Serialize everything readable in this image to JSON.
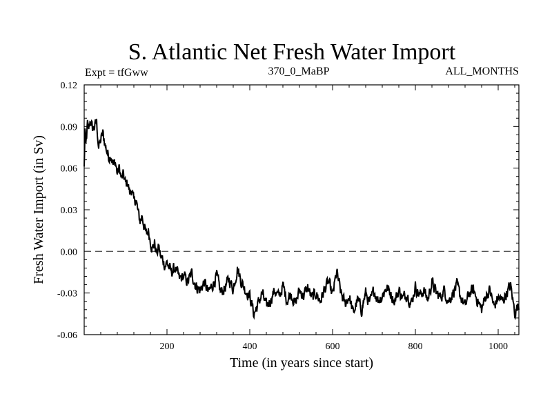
{
  "chart_data": {
    "type": "line",
    "title": "S. Atlantic Net Fresh Water Import",
    "subtitle_left": "Expt = tfGww",
    "subtitle_center": "370_0_MaBP",
    "subtitle_right": "ALL_MONTHS",
    "xlabel": "Time (in years since start)",
    "ylabel": "Fresh Water Import (in Sv)",
    "xlim": [
      0,
      1050
    ],
    "ylim": [
      -0.06,
      0.12
    ],
    "xticks": [
      200,
      400,
      600,
      800,
      1000
    ],
    "xtick_labels": [
      "200",
      "400",
      "600",
      "800",
      "1000"
    ],
    "yticks": [
      -0.06,
      -0.03,
      0.0,
      0.03,
      0.06,
      0.09,
      0.12
    ],
    "ytick_labels": [
      "-0.06",
      "-0.03",
      "0.00",
      "0.03",
      "0.06",
      "0.09",
      "0.12"
    ],
    "reference_line": {
      "y": 0.0,
      "style": "dashed"
    },
    "series": [
      {
        "name": "Net Fresh Water Import",
        "color": "#000000",
        "x": [
          0,
          2,
          4,
          6,
          8,
          10,
          15,
          20,
          25,
          30,
          35,
          40,
          45,
          50,
          55,
          60,
          65,
          70,
          75,
          80,
          85,
          90,
          95,
          100,
          105,
          110,
          115,
          120,
          125,
          130,
          135,
          140,
          145,
          150,
          155,
          160,
          165,
          170,
          175,
          180,
          185,
          190,
          195,
          200,
          210,
          220,
          230,
          240,
          250,
          260,
          270,
          280,
          290,
          300,
          310,
          320,
          330,
          340,
          350,
          360,
          370,
          380,
          390,
          400,
          410,
          420,
          430,
          440,
          450,
          460,
          470,
          480,
          490,
          500,
          510,
          520,
          530,
          540,
          550,
          560,
          570,
          580,
          590,
          600,
          610,
          620,
          630,
          640,
          650,
          660,
          670,
          680,
          690,
          700,
          710,
          720,
          730,
          740,
          750,
          760,
          770,
          780,
          790,
          800,
          810,
          820,
          830,
          840,
          850,
          860,
          870,
          880,
          890,
          900,
          910,
          920,
          930,
          940,
          950,
          960,
          970,
          980,
          990,
          1000,
          1010,
          1020,
          1030,
          1040,
          1050
        ],
        "values": [
          0.06,
          0.088,
          0.075,
          0.083,
          0.092,
          0.086,
          0.095,
          0.088,
          0.09,
          0.093,
          0.075,
          0.08,
          0.085,
          0.078,
          0.072,
          0.068,
          0.07,
          0.062,
          0.065,
          0.056,
          0.06,
          0.052,
          0.055,
          0.048,
          0.05,
          0.042,
          0.045,
          0.035,
          0.038,
          0.028,
          0.022,
          0.026,
          0.018,
          0.012,
          0.015,
          0.008,
          0.002,
          0.006,
          -0.002,
          0.003,
          -0.004,
          -0.006,
          -0.01,
          -0.008,
          -0.015,
          -0.012,
          -0.02,
          -0.018,
          -0.022,
          -0.016,
          -0.025,
          -0.028,
          -0.022,
          -0.03,
          -0.024,
          -0.018,
          -0.03,
          -0.026,
          -0.02,
          -0.027,
          -0.012,
          -0.022,
          -0.028,
          -0.032,
          -0.045,
          -0.038,
          -0.03,
          -0.04,
          -0.035,
          -0.028,
          -0.033,
          -0.025,
          -0.035,
          -0.03,
          -0.038,
          -0.028,
          -0.032,
          -0.026,
          -0.034,
          -0.03,
          -0.036,
          -0.028,
          -0.022,
          -0.032,
          -0.015,
          -0.03,
          -0.038,
          -0.032,
          -0.045,
          -0.035,
          -0.042,
          -0.03,
          -0.038,
          -0.028,
          -0.035,
          -0.032,
          -0.026,
          -0.03,
          -0.036,
          -0.028,
          -0.034,
          -0.03,
          -0.038,
          -0.025,
          -0.032,
          -0.028,
          -0.035,
          -0.022,
          -0.03,
          -0.033,
          -0.028,
          -0.036,
          -0.03,
          -0.025,
          -0.033,
          -0.04,
          -0.03,
          -0.028,
          -0.035,
          -0.042,
          -0.032,
          -0.028,
          -0.04,
          -0.033,
          -0.036,
          -0.03,
          -0.025,
          -0.044,
          -0.038
        ]
      }
    ]
  }
}
